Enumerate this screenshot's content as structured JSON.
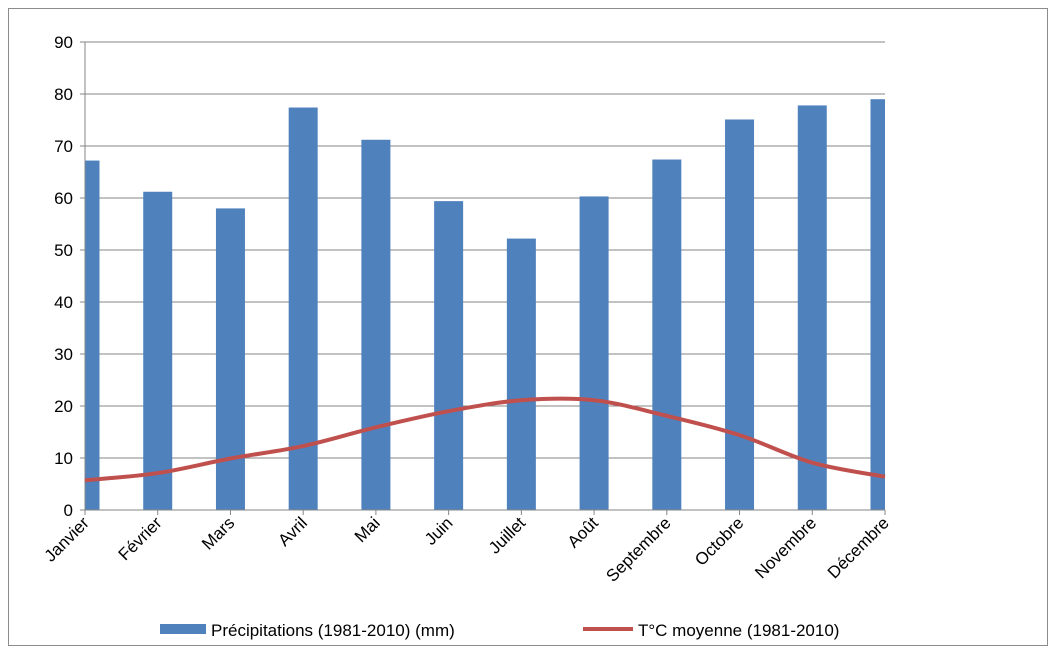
{
  "chart_data": {
    "type": "bar",
    "title": "",
    "xlabel": "",
    "ylabel": "",
    "ylim": [
      0,
      90
    ],
    "yticks": [
      0,
      10,
      20,
      30,
      40,
      50,
      60,
      70,
      80,
      90
    ],
    "grid": true,
    "legend_position": "bottom",
    "categories": [
      "Janvier",
      "Février",
      "Mars",
      "Avril",
      "Mai",
      "Juin",
      "Juillet",
      "Août",
      "Septembre",
      "Octobre",
      "Novembre",
      "Décembre"
    ],
    "series": [
      {
        "name": "Précipitations (1981-2010) (mm)",
        "type": "bar",
        "color": "#4f81bd",
        "values": [
          67.2,
          61.2,
          58.0,
          77.4,
          71.2,
          59.4,
          52.2,
          60.3,
          67.4,
          75.1,
          77.8,
          79.0
        ]
      },
      {
        "name": "T°C moyenne (1981-2010)",
        "type": "line",
        "color": "#c0504d",
        "values": [
          5.7,
          7.1,
          9.9,
          12.3,
          15.9,
          19.0,
          21.1,
          21.1,
          18.1,
          14.4,
          9.1,
          6.4
        ]
      }
    ]
  }
}
